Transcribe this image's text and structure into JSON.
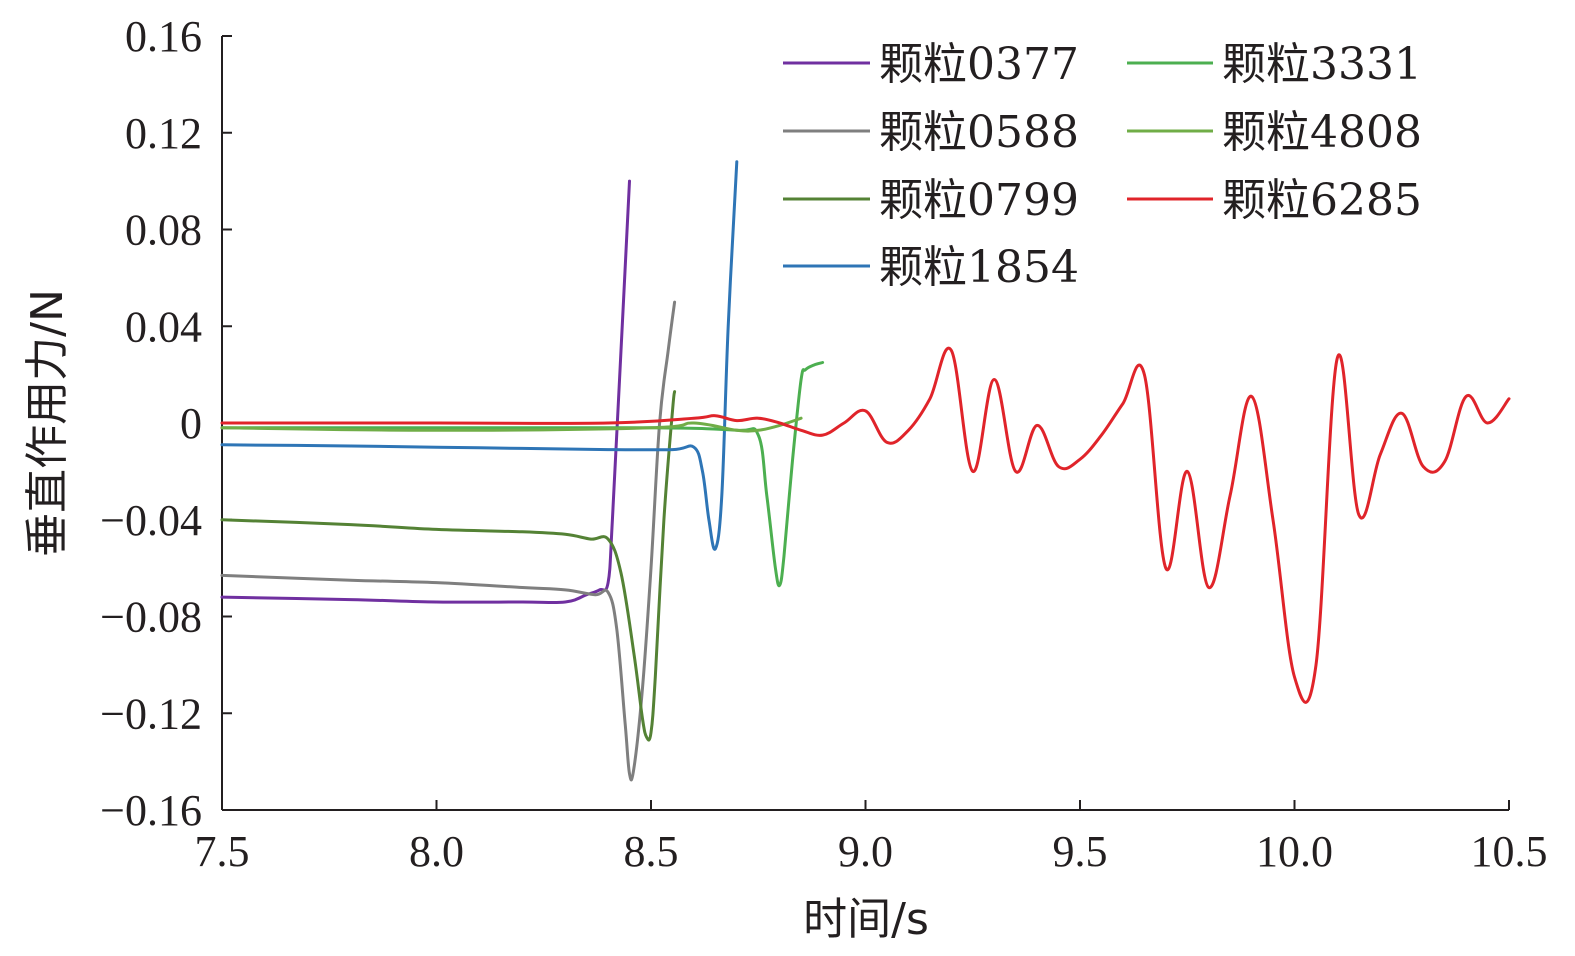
{
  "chart_data": {
    "type": "line",
    "title": "",
    "xlabel": "时间/s",
    "ylabel": "垂直作用力/N",
    "xlim": [
      7.5,
      10.5
    ],
    "ylim": [
      -0.16,
      0.16
    ],
    "x_ticks": [
      7.5,
      8.0,
      8.5,
      9.0,
      9.5,
      10.0,
      10.5
    ],
    "x_tick_labels": [
      "7.5",
      "8.0",
      "8.5",
      "9.0",
      "9.5",
      "10.0",
      "10.5"
    ],
    "y_ticks": [
      0.16,
      0.12,
      0.08,
      0.04,
      0,
      -0.04,
      -0.08,
      -0.12,
      -0.16
    ],
    "y_tick_labels": [
      "0.16",
      "0.12",
      "0.08",
      "0.04",
      "0",
      "−0.04",
      "−0.08",
      "−0.12",
      "−0.16"
    ],
    "grid": false,
    "legend_position": "top-right",
    "series": [
      {
        "name": "颗粒0377",
        "color": "#7030a0",
        "x": [
          7.5,
          7.8,
          8.0,
          8.2,
          8.3,
          8.35,
          8.38,
          8.4,
          8.41,
          8.43,
          8.45
        ],
        "y": [
          -0.072,
          -0.073,
          -0.074,
          -0.074,
          -0.074,
          -0.071,
          -0.069,
          -0.066,
          -0.04,
          0.03,
          0.1
        ]
      },
      {
        "name": "颗粒0588",
        "color": "#7f7f7f",
        "x": [
          7.5,
          7.8,
          8.0,
          8.2,
          8.3,
          8.37,
          8.4,
          8.42,
          8.44,
          8.45,
          8.46,
          8.48,
          8.5,
          8.52,
          8.54,
          8.555
        ],
        "y": [
          -0.063,
          -0.065,
          -0.066,
          -0.068,
          -0.069,
          -0.071,
          -0.07,
          -0.085,
          -0.125,
          -0.145,
          -0.143,
          -0.11,
          -0.06,
          0.0,
          0.03,
          0.05
        ]
      },
      {
        "name": "颗粒0799",
        "color": "#548235",
        "x": [
          7.5,
          7.8,
          8.0,
          8.2,
          8.3,
          8.36,
          8.4,
          8.43,
          8.46,
          8.48,
          8.49,
          8.5,
          8.51,
          8.53,
          8.55,
          8.555
        ],
        "y": [
          -0.04,
          -0.042,
          -0.044,
          -0.045,
          -0.046,
          -0.048,
          -0.048,
          -0.062,
          -0.095,
          -0.122,
          -0.13,
          -0.128,
          -0.105,
          -0.04,
          0.005,
          0.013
        ]
      },
      {
        "name": "颗粒1854",
        "color": "#2e75b6",
        "x": [
          7.5,
          7.8,
          8.0,
          8.2,
          8.4,
          8.55,
          8.6,
          8.62,
          8.635,
          8.65,
          8.665,
          8.68,
          8.7
        ],
        "y": [
          -0.009,
          -0.0095,
          -0.01,
          -0.0105,
          -0.011,
          -0.011,
          -0.01,
          -0.02,
          -0.04,
          -0.052,
          -0.03,
          0.04,
          0.108
        ]
      },
      {
        "name": "颗粒3331",
        "color": "#4caf50",
        "x": [
          7.5,
          8.0,
          8.5,
          8.7,
          8.75,
          8.77,
          8.79,
          8.8,
          8.81,
          8.83,
          8.85,
          8.86,
          8.88,
          8.9
        ],
        "y": [
          -0.002,
          -0.002,
          -0.002,
          -0.003,
          -0.005,
          -0.03,
          -0.06,
          -0.067,
          -0.055,
          -0.015,
          0.018,
          0.022,
          0.024,
          0.025
        ]
      },
      {
        "name": "颗粒4808",
        "color": "#70ad47",
        "x": [
          7.5,
          8.0,
          8.5,
          8.6,
          8.7,
          8.75,
          8.8,
          8.85
        ],
        "y": [
          -0.002,
          -0.003,
          -0.002,
          0.0,
          -0.003,
          -0.003,
          -0.001,
          0.002
        ]
      },
      {
        "name": "颗粒6285",
        "color": "#e0242a",
        "x": [
          7.5,
          8.0,
          8.4,
          8.6,
          8.65,
          8.7,
          8.75,
          8.8,
          8.85,
          8.9,
          8.95,
          9.0,
          9.05,
          9.1,
          9.15,
          9.2,
          9.25,
          9.3,
          9.35,
          9.4,
          9.45,
          9.5,
          9.55,
          9.6,
          9.65,
          9.7,
          9.75,
          9.8,
          9.85,
          9.9,
          9.95,
          10.0,
          10.05,
          10.1,
          10.15,
          10.2,
          10.25,
          10.3,
          10.35,
          10.4,
          10.45,
          10.5
        ],
        "y": [
          0.0,
          0.0,
          0.0,
          0.002,
          0.003,
          0.001,
          0.002,
          0.0,
          -0.003,
          -0.005,
          0.0,
          0.005,
          -0.008,
          -0.003,
          0.01,
          0.03,
          -0.02,
          0.018,
          -0.02,
          -0.001,
          -0.018,
          -0.015,
          -0.005,
          0.008,
          0.02,
          -0.06,
          -0.02,
          -0.068,
          -0.03,
          0.011,
          -0.04,
          -0.105,
          -0.1,
          0.027,
          -0.038,
          -0.013,
          0.004,
          -0.018,
          -0.016,
          0.011,
          0.0,
          0.01
        ]
      }
    ]
  }
}
